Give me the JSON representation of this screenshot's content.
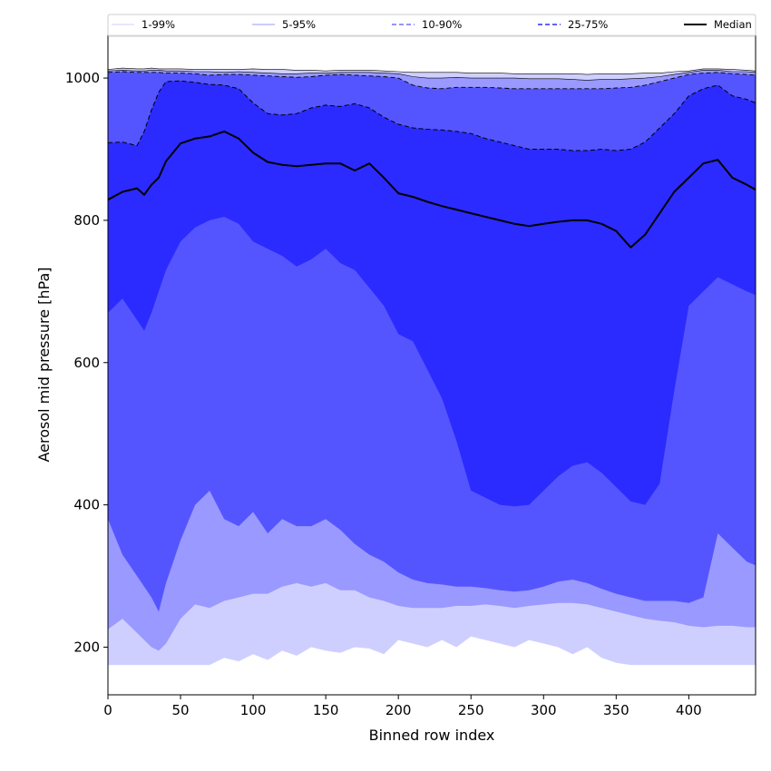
{
  "chart_data": {
    "type": "area",
    "xlabel": "Binned row index",
    "ylabel": "Aerosol mid pressure [hPa]",
    "xlim": [
      0,
      446
    ],
    "ylim": [
      133,
      1060
    ],
    "x_ticks": [
      0,
      50,
      100,
      150,
      200,
      250,
      300,
      350,
      400
    ],
    "y_ticks": [
      200,
      400,
      600,
      800,
      1000
    ],
    "grid": false,
    "legend_position": "top, spanning full width",
    "x": [
      0,
      10,
      20,
      25,
      30,
      35,
      40,
      50,
      60,
      70,
      80,
      90,
      100,
      110,
      120,
      130,
      140,
      150,
      160,
      170,
      180,
      190,
      200,
      210,
      220,
      230,
      240,
      250,
      260,
      270,
      280,
      290,
      300,
      310,
      320,
      330,
      340,
      350,
      360,
      370,
      380,
      390,
      400,
      410,
      420,
      430,
      440,
      446
    ],
    "bands": [
      {
        "name": "1-99%",
        "color": "#cfcfff",
        "line_style": "solid",
        "line_width": 0.6,
        "upper": [
          1012,
          1014,
          1013,
          1013,
          1014,
          1013,
          1013,
          1013,
          1012,
          1012,
          1012,
          1012,
          1013,
          1012,
          1012,
          1011,
          1011,
          1010,
          1011,
          1011,
          1011,
          1010,
          1009,
          1008,
          1008,
          1008,
          1008,
          1007,
          1007,
          1007,
          1006,
          1006,
          1006,
          1006,
          1006,
          1005,
          1006,
          1006,
          1006,
          1007,
          1007,
          1009,
          1010,
          1013,
          1013,
          1012,
          1011,
          1010
        ],
        "lower": [
          175,
          175,
          175,
          175,
          175,
          175,
          175,
          175,
          175,
          175,
          185,
          180,
          190,
          182,
          195,
          188,
          200,
          195,
          192,
          200,
          198,
          190,
          210,
          205,
          200,
          210,
          200,
          215,
          210,
          205,
          200,
          210,
          205,
          200,
          190,
          200,
          185,
          178,
          175,
          175,
          175,
          175,
          175,
          175,
          175,
          175,
          175,
          175
        ]
      },
      {
        "name": "5-95%",
        "color": "#9999ff",
        "line_style": "solid",
        "line_width": 0.6,
        "upper": [
          1010,
          1011,
          1010,
          1010,
          1011,
          1011,
          1010,
          1010,
          1009,
          1009,
          1008,
          1009,
          1008,
          1007,
          1006,
          1006,
          1007,
          1007,
          1008,
          1008,
          1008,
          1007,
          1006,
          1002,
          1000,
          1000,
          1001,
          1000,
          1000,
          1000,
          1000,
          999,
          999,
          999,
          998,
          997,
          998,
          998,
          999,
          1000,
          1002,
          1005,
          1008,
          1011,
          1011,
          1009,
          1009,
          1008
        ],
        "lower": [
          225,
          240,
          220,
          210,
          200,
          195,
          205,
          240,
          260,
          255,
          265,
          270,
          275,
          275,
          285,
          290,
          285,
          290,
          280,
          280,
          270,
          265,
          258,
          255,
          255,
          255,
          258,
          258,
          260,
          258,
          255,
          258,
          260,
          262,
          262,
          260,
          255,
          250,
          245,
          240,
          237,
          235,
          230,
          228,
          230,
          230,
          228,
          228
        ]
      },
      {
        "name": "10-90%",
        "color": "#5555ff",
        "line_style": "dashed",
        "line_width": 0.9,
        "upper": [
          1008,
          1009,
          1008,
          1008,
          1008,
          1008,
          1007,
          1007,
          1006,
          1004,
          1005,
          1005,
          1004,
          1003,
          1002,
          1001,
          1002,
          1004,
          1005,
          1004,
          1003,
          1002,
          1000,
          990,
          986,
          985,
          987,
          987,
          987,
          986,
          985,
          985,
          985,
          985,
          985,
          985,
          985,
          986,
          987,
          990,
          995,
          1000,
          1005,
          1007,
          1008,
          1006,
          1005,
          1004
        ],
        "lower": [
          380,
          330,
          300,
          285,
          270,
          250,
          290,
          350,
          400,
          420,
          380,
          370,
          390,
          360,
          380,
          370,
          370,
          380,
          365,
          345,
          330,
          320,
          305,
          295,
          290,
          288,
          285,
          285,
          283,
          280,
          278,
          280,
          285,
          292,
          295,
          290,
          282,
          275,
          270,
          265,
          265,
          265,
          262,
          270,
          360,
          340,
          320,
          315
        ]
      },
      {
        "name": "25-75%",
        "color": "#2b2bff",
        "line_style": "dashed",
        "line_width": 1.0,
        "upper": [
          909,
          910,
          905,
          925,
          955,
          980,
          995,
          996,
          994,
          991,
          990,
          985,
          965,
          950,
          948,
          950,
          958,
          962,
          960,
          964,
          958,
          945,
          935,
          930,
          928,
          927,
          925,
          922,
          915,
          910,
          905,
          900,
          900,
          900,
          898,
          898,
          900,
          898,
          900,
          910,
          930,
          950,
          975,
          985,
          990,
          975,
          970,
          965
        ],
        "lower": [
          670,
          690,
          660,
          645,
          670,
          700,
          730,
          770,
          790,
          800,
          805,
          795,
          770,
          760,
          750,
          735,
          745,
          760,
          740,
          730,
          705,
          680,
          640,
          630,
          590,
          550,
          490,
          420,
          410,
          400,
          398,
          400,
          420,
          440,
          455,
          460,
          445,
          425,
          405,
          400,
          430,
          560,
          680,
          700,
          720,
          710,
          700,
          695
        ]
      }
    ],
    "series": [
      {
        "name": "Median",
        "color": "#000000",
        "line_style": "solid",
        "line_width": 2,
        "values": [
          829,
          840,
          845,
          836,
          850,
          860,
          883,
          908,
          915,
          918,
          925,
          915,
          895,
          882,
          878,
          876,
          878,
          880,
          880,
          870,
          880,
          860,
          838,
          833,
          826,
          820,
          815,
          810,
          805,
          800,
          795,
          792,
          795,
          798,
          800,
          800,
          795,
          785,
          762,
          780,
          810,
          840,
          860,
          880,
          885,
          860,
          850,
          843
        ]
      }
    ]
  }
}
